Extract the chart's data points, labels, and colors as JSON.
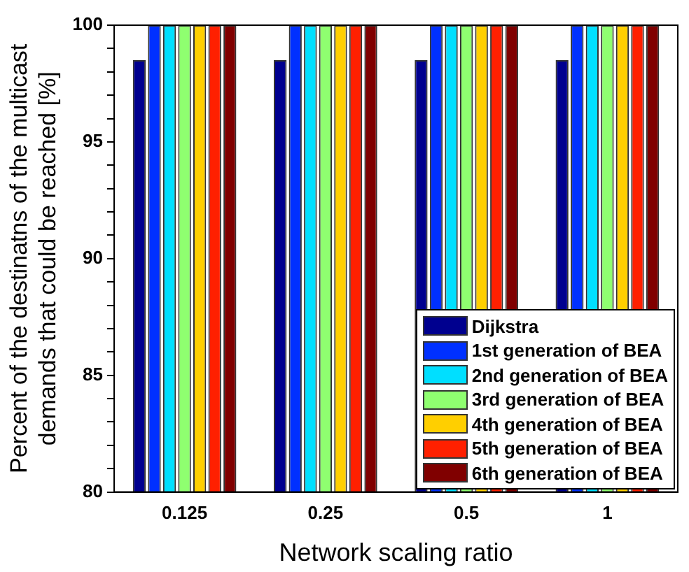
{
  "chart_data": {
    "type": "bar",
    "xlabel": "Network scaling ratio",
    "ylabel": "Percent of the destinatns of the multicast\ndemands that could be reached [%]",
    "categories": [
      "0.125",
      "0.25",
      "0.5",
      "1"
    ],
    "series": [
      {
        "name": "Dijkstra",
        "color": "#00008f",
        "values": [
          98.5,
          98.5,
          98.5,
          98.5
        ]
      },
      {
        "name": "1st generation of BEA",
        "color": "#0030ff",
        "values": [
          100,
          100,
          100,
          100
        ]
      },
      {
        "name": "2nd generation of BEA",
        "color": "#00dfff",
        "values": [
          100,
          100,
          100,
          100
        ]
      },
      {
        "name": "3rd generation of BEA",
        "color": "#8fff70",
        "values": [
          100,
          100,
          100,
          100
        ]
      },
      {
        "name": "4th generation of BEA",
        "color": "#ffcf00",
        "values": [
          100,
          100,
          100,
          100
        ]
      },
      {
        "name": "5th generation of BEA",
        "color": "#ff2000",
        "values": [
          100,
          100,
          100,
          100
        ]
      },
      {
        "name": "6th generation of BEA",
        "color": "#800000",
        "values": [
          100,
          100,
          100,
          100
        ]
      }
    ],
    "ylim": [
      80,
      100
    ],
    "yticks": [
      80,
      {
        "value": 81,
        "label": null
      },
      {
        "value": 82,
        "label": null
      },
      {
        "value": 83,
        "label": null
      },
      {
        "value": 84,
        "label": null
      },
      85,
      {
        "value": 86,
        "label": null
      },
      {
        "value": 87,
        "label": null
      },
      {
        "value": 88,
        "label": null
      },
      {
        "value": 89,
        "label": null
      },
      90,
      {
        "value": 91,
        "label": null
      },
      {
        "value": 92,
        "label": null
      },
      {
        "value": 93,
        "label": null
      },
      {
        "value": 94,
        "label": null
      },
      95,
      {
        "value": 96,
        "label": null
      },
      {
        "value": 97,
        "label": null
      },
      {
        "value": 98,
        "label": null
      },
      {
        "value": 99,
        "label": null
      },
      100
    ],
    "grid": false,
    "legend": "bottom right"
  }
}
